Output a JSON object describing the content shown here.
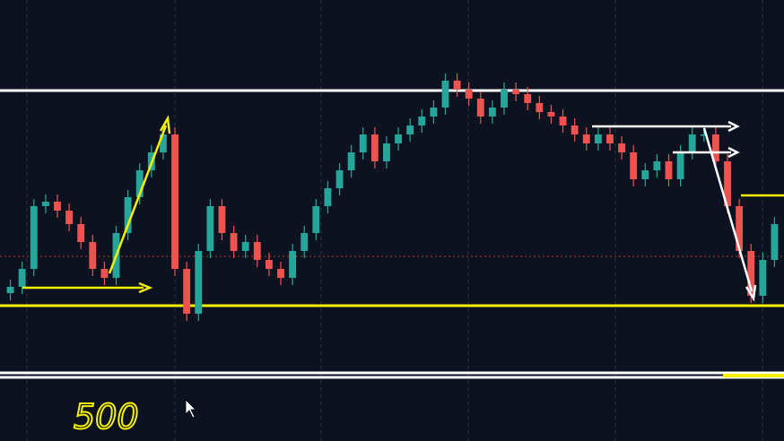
{
  "chart_data": {
    "type": "candlestick",
    "ylim": [
      0,
      492
    ],
    "up_color": "#26a69a",
    "down_color": "#ef5350",
    "open": [
      165,
      172,
      192,
      262,
      267,
      257,
      242,
      222,
      192,
      182,
      232,
      272,
      302,
      322,
      342,
      192,
      142,
      212,
      262,
      232,
      212,
      222,
      202,
      192,
      182,
      212,
      232,
      262,
      282,
      302,
      322,
      342,
      312,
      332,
      342,
      352,
      362,
      372,
      402,
      392,
      382,
      362,
      372,
      392,
      387,
      377,
      367,
      362,
      352,
      342,
      332,
      342,
      332,
      322,
      292,
      302,
      312,
      292,
      322,
      342,
      342,
      312,
      262,
      212,
      162,
      202
    ],
    "high": [
      180,
      200,
      270,
      275,
      275,
      265,
      250,
      230,
      200,
      240,
      280,
      310,
      330,
      350,
      350,
      200,
      220,
      270,
      270,
      240,
      230,
      230,
      210,
      200,
      220,
      240,
      270,
      290,
      310,
      330,
      350,
      350,
      340,
      350,
      360,
      370,
      380,
      410,
      410,
      400,
      390,
      380,
      400,
      400,
      395,
      385,
      375,
      370,
      360,
      350,
      350,
      350,
      340,
      330,
      310,
      320,
      320,
      330,
      350,
      350,
      350,
      320,
      270,
      220,
      210,
      250
    ],
    "low": [
      157,
      164,
      184,
      254,
      249,
      234,
      214,
      184,
      174,
      174,
      224,
      264,
      294,
      314,
      184,
      134,
      134,
      204,
      224,
      204,
      204,
      194,
      184,
      174,
      174,
      204,
      224,
      254,
      274,
      294,
      314,
      304,
      304,
      324,
      334,
      344,
      354,
      364,
      384,
      374,
      354,
      354,
      364,
      379,
      369,
      359,
      354,
      344,
      334,
      324,
      324,
      324,
      314,
      284,
      284,
      294,
      284,
      284,
      314,
      334,
      304,
      254,
      204,
      154,
      154,
      194
    ],
    "close": [
      172,
      192,
      262,
      267,
      257,
      242,
      222,
      192,
      182,
      232,
      272,
      302,
      322,
      342,
      192,
      142,
      212,
      262,
      232,
      212,
      222,
      202,
      192,
      182,
      212,
      232,
      262,
      282,
      302,
      322,
      342,
      312,
      332,
      342,
      352,
      362,
      372,
      402,
      392,
      382,
      362,
      372,
      392,
      387,
      377,
      367,
      362,
      352,
      342,
      332,
      342,
      332,
      322,
      292,
      302,
      312,
      292,
      322,
      342,
      342,
      312,
      262,
      212,
      162,
      202,
      242
    ],
    "levels": [
      {
        "value": 391,
        "color": "#ffffff"
      },
      {
        "value": 151,
        "color": "#f5f000"
      },
      {
        "value": 76,
        "color": "#ffffff"
      },
      {
        "value": 71,
        "color": "#ffffff"
      },
      {
        "value": 206,
        "color": "#c0392b",
        "dashed": true
      }
    ],
    "annotation": "500"
  }
}
